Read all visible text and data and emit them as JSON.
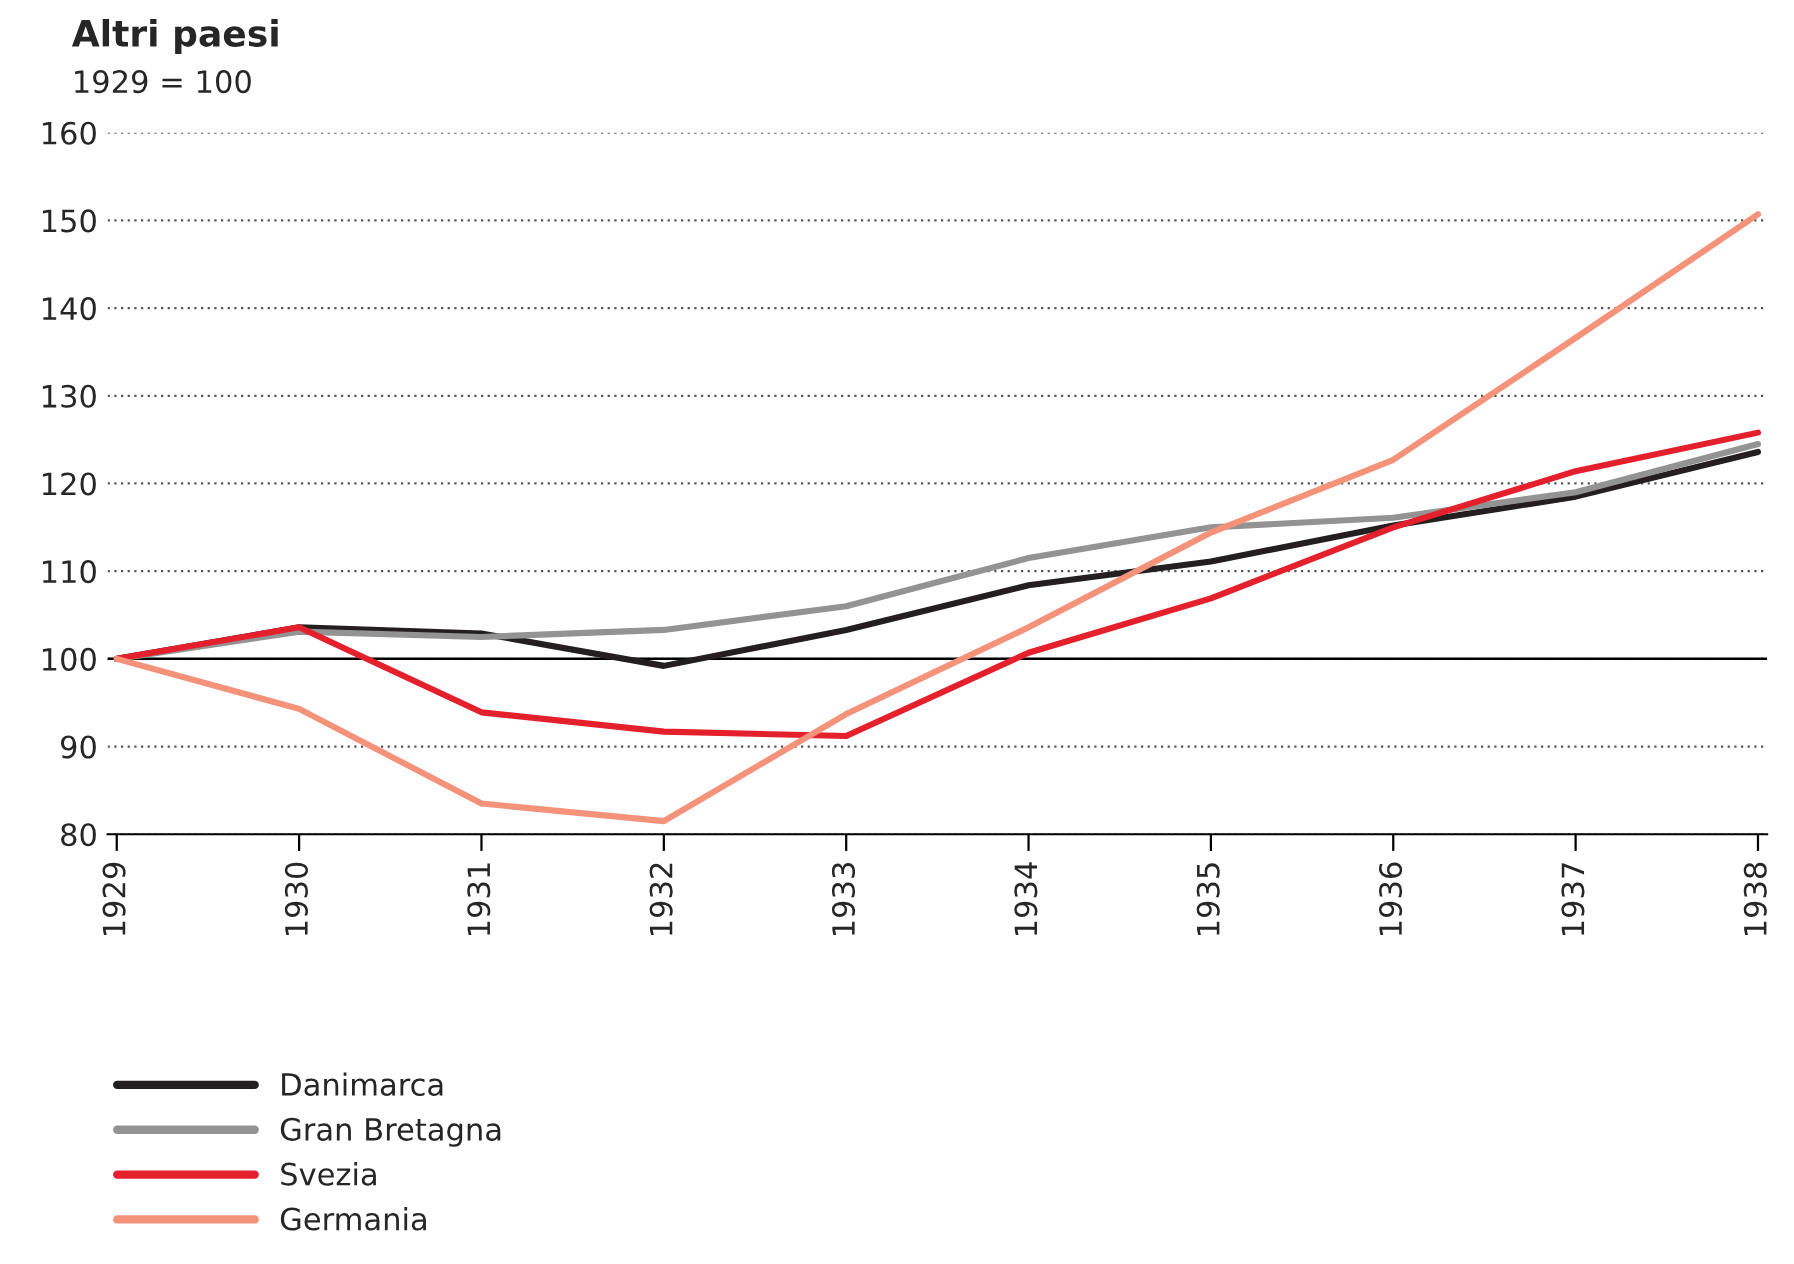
{
  "chart_data": {
    "type": "line",
    "title": "Altri paesi",
    "subtitle": "1929 = 100",
    "categories": [
      "1929",
      "1930",
      "1931",
      "1932",
      "1933",
      "1934",
      "1935",
      "1936",
      "1937",
      "1938"
    ],
    "series": [
      {
        "name": "Danimarca",
        "color": "#231f20",
        "values": [
          100,
          103.6,
          102.9,
          99.2,
          103.3,
          108.4,
          111.1,
          115.2,
          118.5,
          123.6
        ]
      },
      {
        "name": "Gran Bretagna",
        "color": "#939393",
        "values": [
          100,
          103.1,
          102.5,
          103.3,
          106,
          111.5,
          115,
          116.1,
          119,
          124.5
        ]
      },
      {
        "name": "Svezia",
        "color": "#e3202b",
        "values": [
          100,
          103.6,
          93.9,
          91.7,
          91.2,
          100.7,
          106.9,
          115,
          121.4,
          125.8
        ]
      },
      {
        "name": "Germania",
        "color": "#f4927a",
        "values": [
          100,
          94.3,
          83.5,
          81.5,
          93.7,
          103.6,
          114.4,
          122.7,
          136.6,
          150.7
        ]
      }
    ],
    "ylim": [
      80,
      160
    ],
    "yticks": [
      80,
      90,
      100,
      110,
      120,
      130,
      140,
      150,
      160
    ],
    "ref_lines": [
      {
        "axis": "y",
        "value": 100,
        "color": "#000000"
      }
    ],
    "grid": "y",
    "legend": "bottom",
    "marker": "none",
    "line_style": "solid"
  }
}
